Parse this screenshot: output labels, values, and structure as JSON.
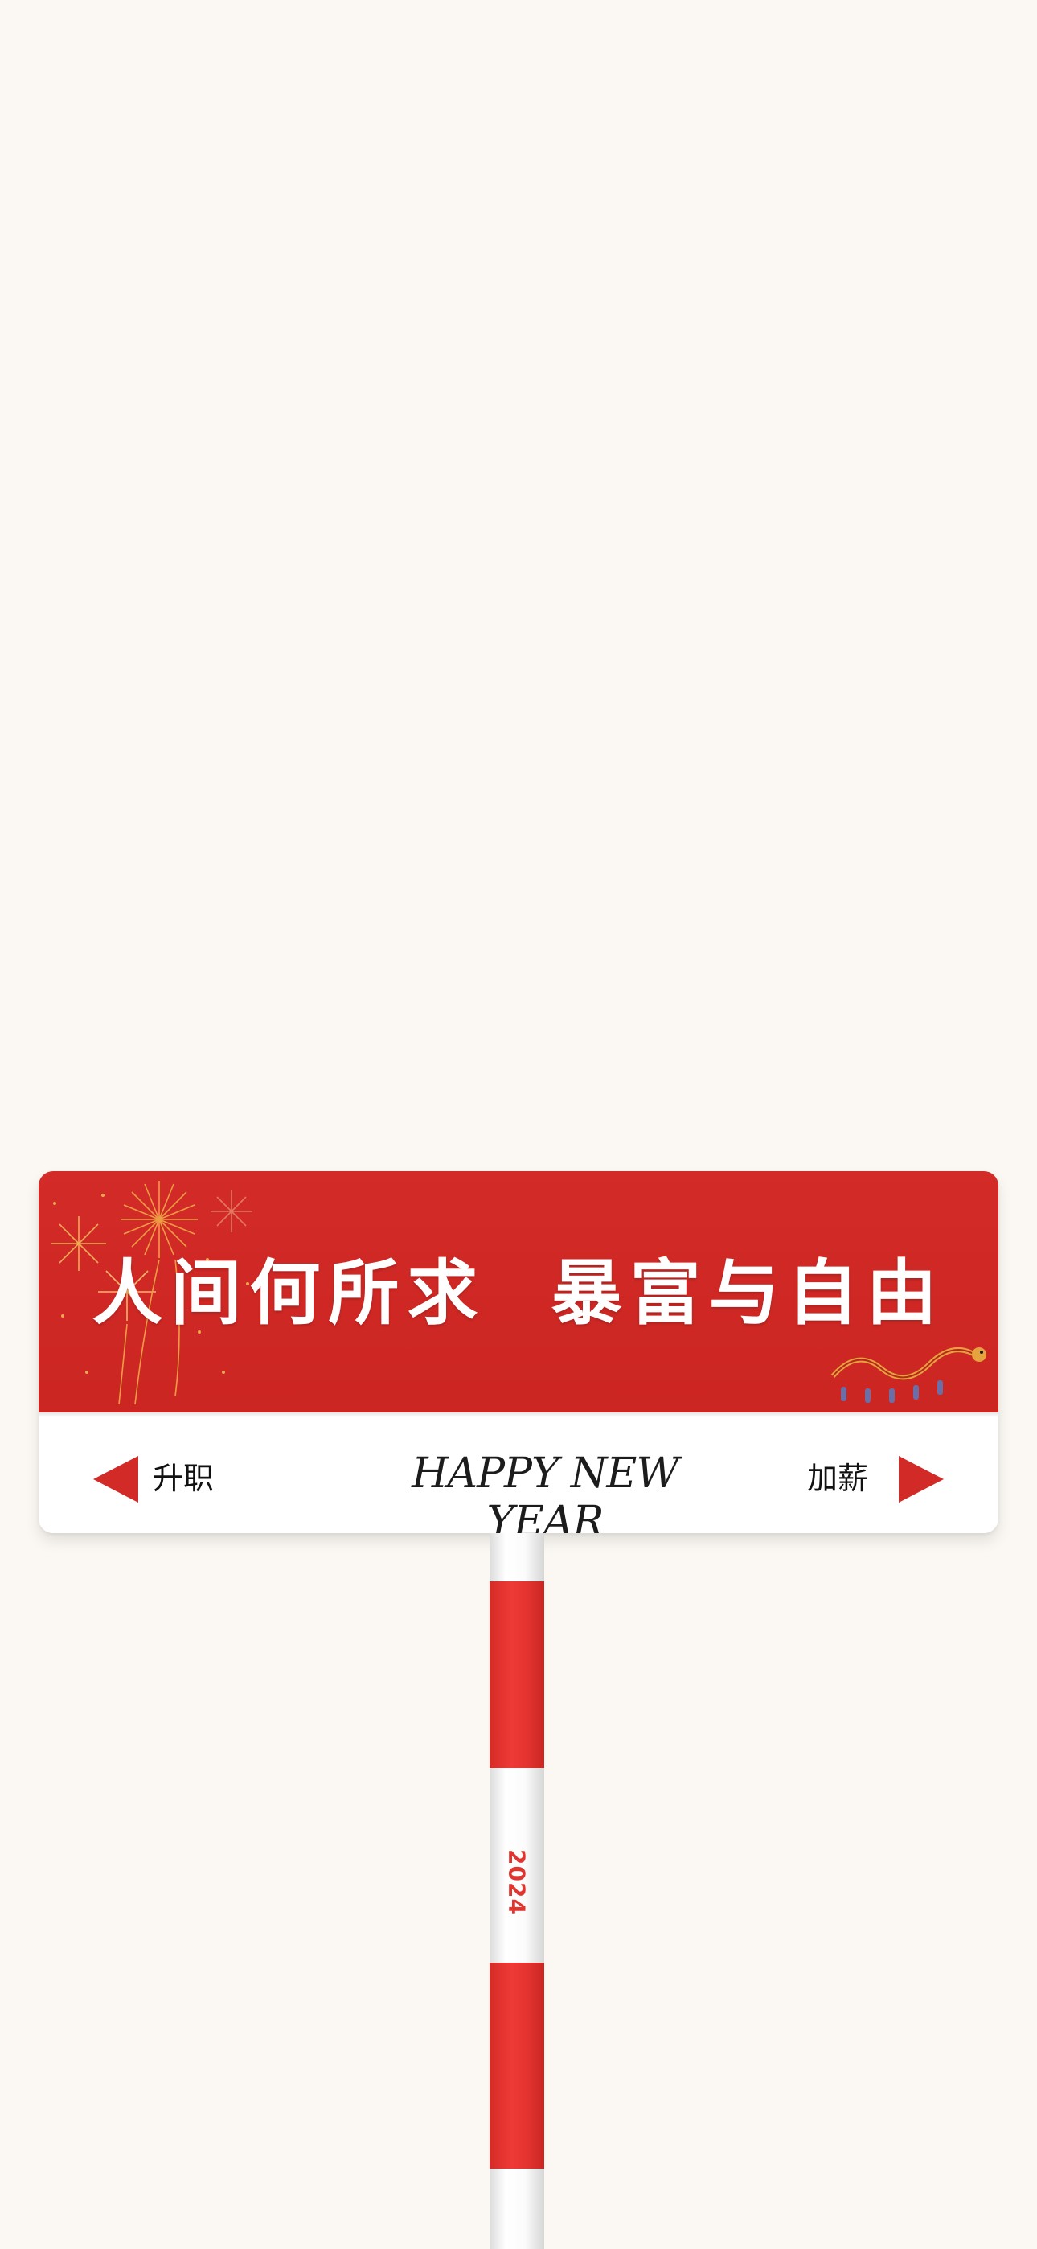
{
  "sign": {
    "slogan": "人间何所求  暴富与自由",
    "left_direction": "升职",
    "right_direction": "加薪",
    "greeting": "HAPPY NEW YEAR"
  },
  "pole": {
    "year": "2024"
  },
  "colors": {
    "background": "#fbf8f3",
    "sign_red": "#d32b27",
    "sign_white": "#ffffff",
    "arrow_red": "#d22a26"
  },
  "icons": {
    "left_arrow": "left-arrow-icon",
    "right_arrow": "right-arrow-icon",
    "fireworks": "fireworks-decoration",
    "dragon": "dragon-dance-decoration"
  }
}
